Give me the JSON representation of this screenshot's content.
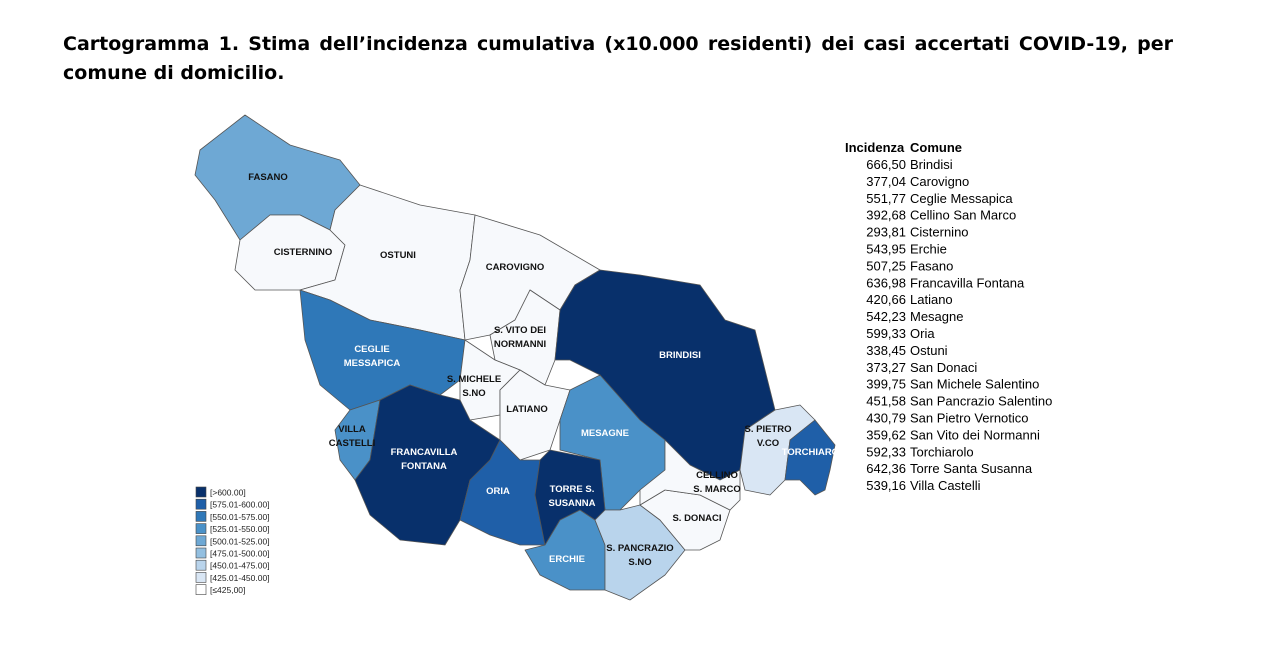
{
  "title": "Cartogramma 1. Stima dell’incidenza cumulativa (x10.000 residenti) dei casi accertati COVID-19, per comune di domicilio.",
  "map": {
    "labels": [
      [
        "FASANO"
      ],
      [
        "CISTERNINO"
      ],
      [
        "OSTUNI"
      ],
      [
        "CAROVIGNO"
      ],
      [
        "S. VITO DEI",
        "NORMANNI"
      ],
      [
        "BRINDISI"
      ],
      [
        "CEGLIE",
        "MESSAPICA"
      ],
      [
        "S. MICHELE",
        "S.NO"
      ],
      [
        "LATIANO"
      ],
      [
        "MESAGNE"
      ],
      [
        "VILLA",
        "CASTELLI"
      ],
      [
        "FRANCAVILLA",
        "FONTANA"
      ],
      [
        "ORIA"
      ],
      [
        "TORRE S.",
        "SUSANNA"
      ],
      [
        "CELLINO",
        "S. MARCO"
      ],
      [
        "S. PIETRO",
        "V.CO"
      ],
      [
        "TORCHIAROLO"
      ],
      [
        "S. DONACI"
      ],
      [
        "S. PANCRAZIO",
        "S.NO"
      ],
      [
        "ERCHIE"
      ]
    ]
  },
  "legend": {
    "classes": [
      "[>600.00]",
      "[575.01-600.00]",
      "[550.01-575.00]",
      "[525.01-550.00]",
      "[500.01-525.00]",
      "[475.01-500.00]",
      "[450.01-475.00]",
      "[425.01-450.00]",
      "[≤425,00]"
    ]
  },
  "table": {
    "headers": [
      "Incidenza",
      "Comune"
    ],
    "rows": [
      [
        "666,50",
        "Brindisi"
      ],
      [
        "377,04",
        "Carovigno"
      ],
      [
        "551,77",
        "Ceglie Messapica"
      ],
      [
        "392,68",
        "Cellino San Marco"
      ],
      [
        "293,81",
        "Cisternino"
      ],
      [
        "543,95",
        "Erchie"
      ],
      [
        "507,25",
        "Fasano"
      ],
      [
        "636,98",
        "Francavilla Fontana"
      ],
      [
        "420,66",
        "Latiano"
      ],
      [
        "542,23",
        "Mesagne"
      ],
      [
        "599,33",
        "Oria"
      ],
      [
        "338,45",
        "Ostuni"
      ],
      [
        "373,27",
        "San Donaci"
      ],
      [
        "399,75",
        "San Michele Salentino"
      ],
      [
        "451,58",
        "San Pancrazio Salentino"
      ],
      [
        "430,79",
        "San Pietro Vernotico"
      ],
      [
        "359,62",
        "San Vito dei Normanni"
      ],
      [
        "592,33",
        "Torchiarolo"
      ],
      [
        "642,36",
        "Torre Santa Susanna"
      ],
      [
        "539,16",
        "Villa Castelli"
      ]
    ]
  }
}
